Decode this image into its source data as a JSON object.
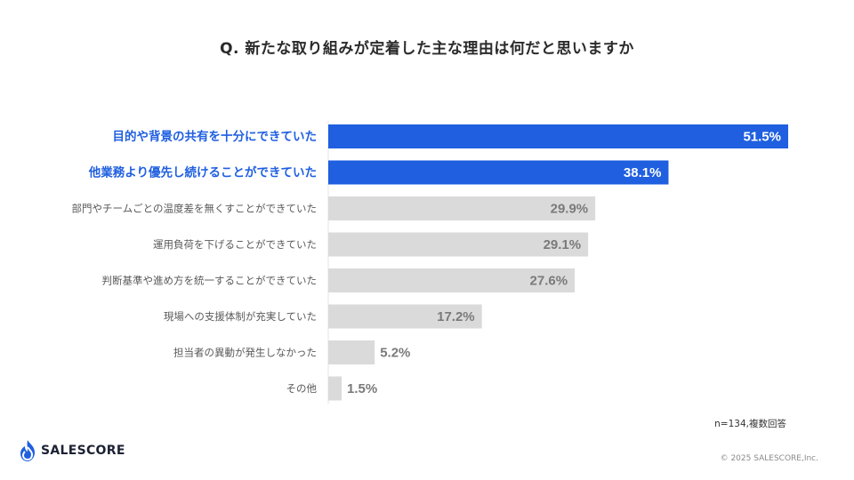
{
  "header": {
    "title": "Q. 新たな取り組みが定着した主な理由は何だと思いますか"
  },
  "chart_data": {
    "type": "bar",
    "orientation": "horizontal",
    "title": "Q. 新たな取り組みが定着した主な理由は何だと思いますか",
    "categories": [
      "目的や背景の共有を十分にできていた",
      "他業務より優先し続けることができていた",
      "部門やチームごとの温度差を無くすことができていた",
      "運用負荷を下げることができていた",
      "判断基準や進め方を統一することができていた",
      "現場への支援体制が充実していた",
      "担当者の異動が発生しなかった",
      "その他"
    ],
    "values": [
      51.5,
      38.1,
      29.9,
      29.1,
      27.6,
      17.2,
      5.2,
      1.5
    ],
    "value_labels": [
      "51.5%",
      "38.1%",
      "29.9%",
      "29.1%",
      "27.6%",
      "17.2%",
      "5.2%",
      "1.5%"
    ],
    "highlight_count": 2,
    "xlim": [
      0,
      51.5
    ],
    "grid": false,
    "xlabel": "",
    "ylabel": "",
    "colors": {
      "highlight": "#1f5fe0",
      "highlight_label": "#1f5fe0",
      "normal": "#dadada",
      "normal_label": "#5a5a5a",
      "value_on_highlight": "#ffffff",
      "value_on_normal": "#7a7a7a"
    }
  },
  "footer": {
    "note": "n=134,複数回答",
    "brand": "SALESCORE",
    "brand_icon": "flame-logo-icon",
    "copyright": "© 2025 SALESCORE,Inc."
  }
}
